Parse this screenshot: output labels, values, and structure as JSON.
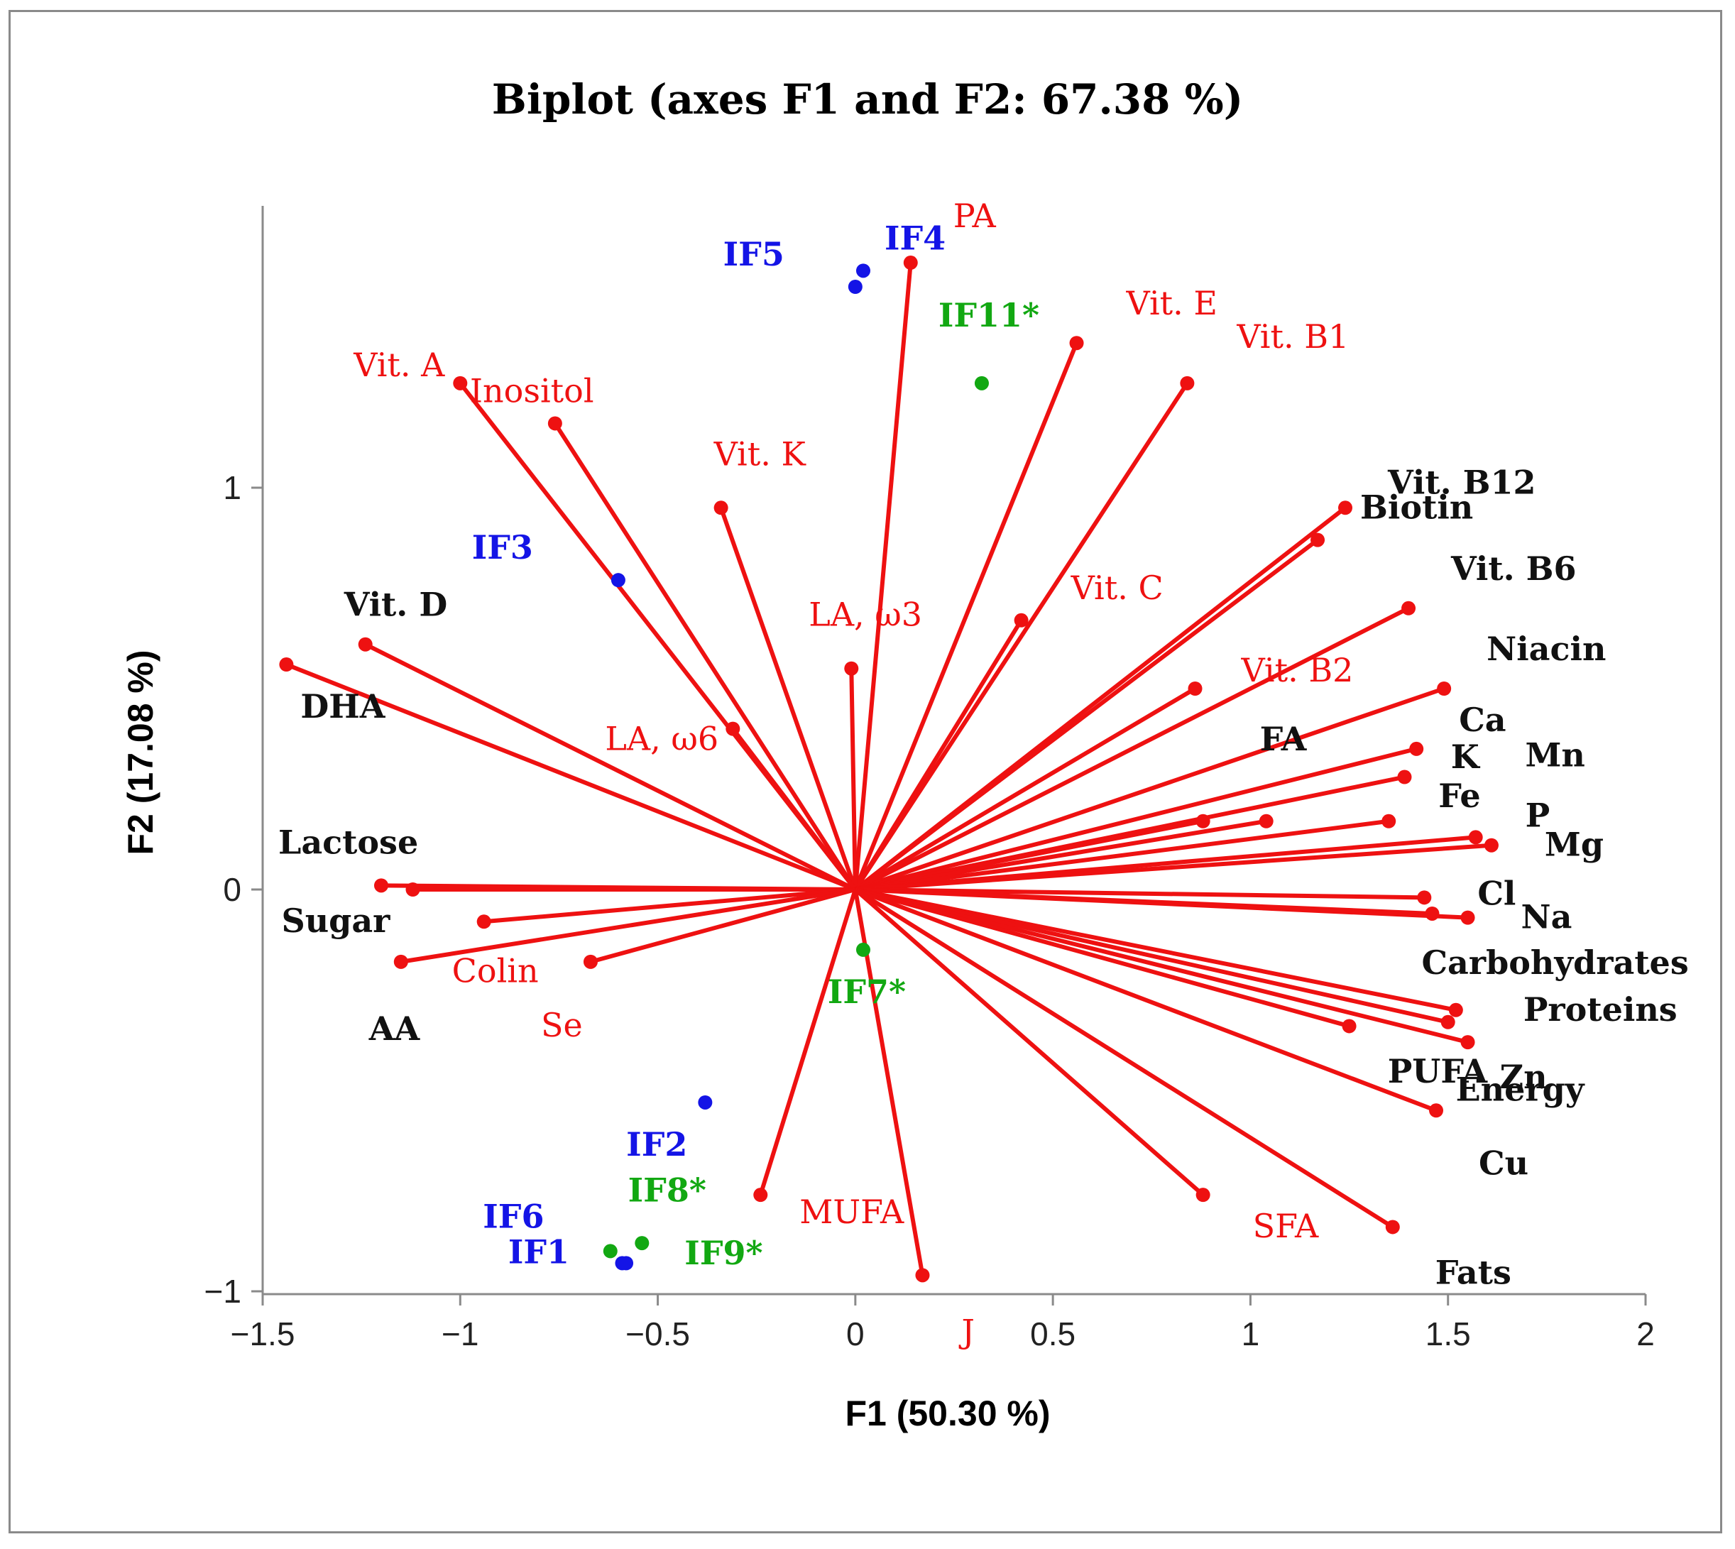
{
  "chart_data": {
    "type": "scatter",
    "subtype": "biplot",
    "title": "Biplot (axes F1 and F2: 67.38 %)",
    "xlabel": "F1 (50.30 %)",
    "ylabel": "F2 (17.08 %)",
    "xlim": [
      -1.5,
      2
    ],
    "ylim": [
      -1,
      1.7
    ],
    "xticks": [
      -1.5,
      -1,
      -0.5,
      0,
      0.5,
      1,
      1.5,
      2
    ],
    "xtick_labels": [
      "−1.5",
      "−1",
      "−0.5",
      "0",
      "0.5",
      "1",
      "1.5",
      "2"
    ],
    "yticks": [
      -1,
      0,
      1
    ],
    "ytick_labels": [
      "−1",
      "0",
      "1"
    ],
    "colors": {
      "variables": "#ee1111",
      "commercial": "#1414e6",
      "experimental": "#12a812",
      "dark_label": "#111111"
    },
    "variables": [
      {
        "name": "PA",
        "x": 0.14,
        "y": 1.56,
        "color": "#ee1111",
        "bold": false
      },
      {
        "name": "Vit. E",
        "x": 0.56,
        "y": 1.36,
        "color": "#ee1111",
        "bold": false
      },
      {
        "name": "Vit. B1",
        "x": 0.84,
        "y": 1.26,
        "color": "#ee1111",
        "bold": false
      },
      {
        "name": "Vit. A",
        "x": -1.0,
        "y": 1.26,
        "color": "#ee1111",
        "bold": false
      },
      {
        "name": "Inositol",
        "x": -0.76,
        "y": 1.16,
        "color": "#ee1111",
        "bold": false
      },
      {
        "name": "Vit. K",
        "x": -0.34,
        "y": 0.95,
        "color": "#ee1111",
        "bold": false
      },
      {
        "name": "Vit. B12",
        "x": 1.24,
        "y": 0.95,
        "color": "#111111",
        "bold": true
      },
      {
        "name": "Biotin",
        "x": 1.17,
        "y": 0.87,
        "color": "#111111",
        "bold": true
      },
      {
        "name": "Vit. C",
        "x": 0.42,
        "y": 0.67,
        "color": "#ee1111",
        "bold": false
      },
      {
        "name": "Vit. B6",
        "x": 1.4,
        "y": 0.7,
        "color": "#111111",
        "bold": true
      },
      {
        "name": "Vit. D",
        "x": -1.24,
        "y": 0.61,
        "color": "#111111",
        "bold": true
      },
      {
        "name": "DHA",
        "x": -1.44,
        "y": 0.56,
        "color": "#111111",
        "bold": true
      },
      {
        "name": "LA, ω3",
        "x": -0.01,
        "y": 0.55,
        "color": "#ee1111",
        "bold": false
      },
      {
        "name": "Vit. B2",
        "x": 0.86,
        "y": 0.5,
        "color": "#ee1111",
        "bold": false
      },
      {
        "name": "Niacin",
        "x": 1.49,
        "y": 0.5,
        "color": "#111111",
        "bold": true
      },
      {
        "name": "LA, ω6",
        "x": -0.31,
        "y": 0.4,
        "color": "#ee1111",
        "bold": false
      },
      {
        "name": "Ca",
        "x": 1.42,
        "y": 0.35,
        "color": "#111111",
        "bold": true
      },
      {
        "name": "Mn",
        "x": 1.39,
        "y": 0.28,
        "color": "#111111",
        "bold": true
      },
      {
        "name": "FA",
        "x": 0.88,
        "y": 0.17,
        "color": "#111111",
        "bold": true
      },
      {
        "name": "K",
        "x": 1.04,
        "y": 0.17,
        "color": "#111111",
        "bold": true
      },
      {
        "name": "Fe",
        "x": 1.35,
        "y": 0.17,
        "color": "#111111",
        "bold": true
      },
      {
        "name": "P",
        "x": 1.57,
        "y": 0.13,
        "color": "#111111",
        "bold": true
      },
      {
        "name": "Mg",
        "x": 1.61,
        "y": 0.11,
        "color": "#111111",
        "bold": true
      },
      {
        "name": "Lactose",
        "x": -1.2,
        "y": 0.01,
        "color": "#111111",
        "bold": true
      },
      {
        "name": "Sugar",
        "x": -1.12,
        "y": 0.0,
        "color": "#111111",
        "bold": true
      },
      {
        "name": "Cl",
        "x": 1.44,
        "y": -0.02,
        "color": "#111111",
        "bold": true
      },
      {
        "name": "Carbohydrates",
        "x": 1.46,
        "y": -0.06,
        "color": "#111111",
        "bold": true
      },
      {
        "name": "Na",
        "x": 1.55,
        "y": -0.07,
        "color": "#111111",
        "bold": true
      },
      {
        "name": "Colin",
        "x": -0.94,
        "y": -0.08,
        "color": "#ee1111",
        "bold": false
      },
      {
        "name": "AA",
        "x": -1.15,
        "y": -0.18,
        "color": "#111111",
        "bold": true
      },
      {
        "name": "Se",
        "x": -0.67,
        "y": -0.18,
        "color": "#ee1111",
        "bold": false
      },
      {
        "name": "Proteins",
        "x": 1.52,
        "y": -0.3,
        "color": "#111111",
        "bold": true
      },
      {
        "name": "PUFA",
        "x": 1.5,
        "y": -0.33,
        "color": "#111111",
        "bold": true
      },
      {
        "name": "Zn",
        "x": 1.55,
        "y": -0.38,
        "color": "#111111",
        "bold": true
      },
      {
        "name": "Energy",
        "x": 1.25,
        "y": -0.34,
        "color": "#111111",
        "bold": true
      },
      {
        "name": "Cu",
        "x": 1.47,
        "y": -0.55,
        "color": "#111111",
        "bold": true
      },
      {
        "name": "SFA",
        "x": 0.88,
        "y": -0.76,
        "color": "#ee1111",
        "bold": false
      },
      {
        "name": "Fats",
        "x": 1.36,
        "y": -0.84,
        "color": "#111111",
        "bold": true
      },
      {
        "name": "MUFA",
        "x": -0.24,
        "y": -0.76,
        "color": "#ee1111",
        "bold": false
      },
      {
        "name": "J",
        "x": 0.17,
        "y": -0.96,
        "color": "#ee1111",
        "bold": false
      }
    ],
    "observations": [
      {
        "name": "IF5",
        "x": 0.0,
        "y": 1.5,
        "group": "commercial",
        "color": "#1414e6"
      },
      {
        "name": "IF4",
        "x": 0.02,
        "y": 1.54,
        "group": "commercial",
        "color": "#1414e6"
      },
      {
        "name": "IF3",
        "x": -0.6,
        "y": 0.77,
        "group": "commercial",
        "color": "#1414e6"
      },
      {
        "name": "IF2",
        "x": -0.38,
        "y": -0.53,
        "group": "commercial",
        "color": "#1414e6"
      },
      {
        "name": "IF6",
        "x": -0.59,
        "y": -0.93,
        "group": "commercial",
        "color": "#1414e6"
      },
      {
        "name": "IF1",
        "x": -0.58,
        "y": -0.93,
        "group": "commercial",
        "color": "#1414e6"
      },
      {
        "name": "IF11*",
        "x": 0.32,
        "y": 1.26,
        "group": "experimental",
        "color": "#12a812"
      },
      {
        "name": "IF7*",
        "x": 0.02,
        "y": -0.15,
        "group": "experimental",
        "color": "#12a812"
      },
      {
        "name": "IF8*",
        "x": -0.62,
        "y": -0.9,
        "group": "experimental",
        "color": "#12a812"
      },
      {
        "name": "IF9*",
        "x": -0.54,
        "y": -0.88,
        "group": "experimental",
        "color": "#12a812"
      }
    ]
  }
}
